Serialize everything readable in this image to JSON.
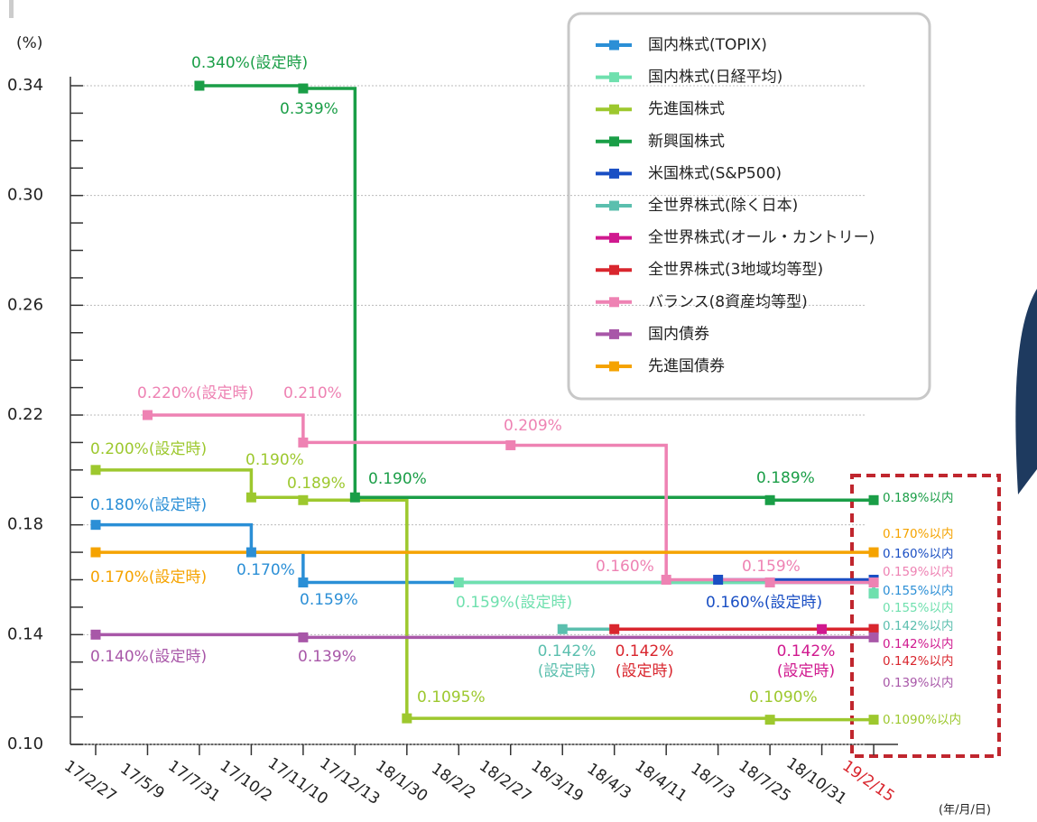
{
  "chart_data": {
    "type": "step",
    "y_unit_label": "(%)",
    "x_unit_label": "(年/月/日)",
    "categories": [
      "17/2/27",
      "17/5/9",
      "17/7/31",
      "17/10/2",
      "17/11/10",
      "17/12/13",
      "18/1/30",
      "18/2/2",
      "18/2/27",
      "18/3/19",
      "18/4/3",
      "18/4/11",
      "18/7/3",
      "18/7/25",
      "18/10/31",
      "19/2/15"
    ],
    "highlight_category_color": "#d9262e",
    "ylim": [
      0.1,
      0.34
    ],
    "yticks": [
      {
        "value": 0.1,
        "label": "0.10"
      },
      0.14,
      0.18,
      0.22,
      0.26,
      {
        "value": 0.3,
        "label": "0.30"
      },
      0.34
    ],
    "yminorticks": [
      0.11,
      0.12,
      0.13,
      0.15,
      0.16,
      0.17,
      0.19,
      0.2,
      0.21,
      0.23,
      0.24,
      0.25,
      0.27,
      0.28,
      0.29,
      0.31,
      0.32,
      0.33
    ],
    "grid": true,
    "series": [
      {
        "name": "国内株式(TOPIX)",
        "color": "#2b8fd6",
        "values": [
          0.18,
          0.18,
          0.18,
          0.17,
          0.159,
          0.159,
          0.159,
          0.159,
          0.159,
          0.159,
          0.159,
          0.159,
          0.159,
          0.159,
          0.159,
          0.155
        ],
        "value_labels": [
          "0.180%(設定時)",
          null,
          null,
          "0.170%",
          "0.159%",
          null,
          null,
          null,
          null,
          null,
          null,
          null,
          null,
          null,
          null,
          "0.155%以内"
        ]
      },
      {
        "name": "国内株式(日経平均)",
        "color": "#6fe0ae",
        "values": [
          null,
          null,
          null,
          null,
          null,
          null,
          null,
          0.159,
          0.159,
          0.159,
          0.159,
          0.159,
          0.159,
          0.159,
          0.159,
          0.155
        ],
        "value_labels": [
          null,
          null,
          null,
          null,
          null,
          null,
          null,
          "0.159%(設定時)",
          null,
          null,
          null,
          null,
          null,
          null,
          null,
          "0.155%以内"
        ]
      },
      {
        "name": "先進国株式",
        "color": "#9dc82e",
        "values": [
          0.2,
          0.2,
          0.2,
          0.19,
          0.189,
          0.189,
          0.1095,
          0.1095,
          0.1095,
          0.1095,
          0.1095,
          0.1095,
          0.1095,
          0.109,
          0.109,
          0.109
        ],
        "value_labels": [
          "0.200%(設定時)",
          null,
          null,
          "0.190%",
          "0.189%",
          null,
          "0.1095%",
          null,
          null,
          null,
          null,
          null,
          null,
          "0.1090%",
          null,
          "0.1090%以内"
        ]
      },
      {
        "name": "新興国株式",
        "color": "#1a9e47",
        "values": [
          null,
          null,
          0.34,
          0.34,
          0.339,
          0.19,
          0.19,
          0.19,
          0.19,
          0.19,
          0.19,
          0.19,
          0.19,
          0.189,
          0.189,
          0.189
        ],
        "value_labels": [
          null,
          null,
          "0.340%(設定時)",
          null,
          "0.339%",
          "0.190%",
          null,
          null,
          null,
          null,
          null,
          null,
          null,
          "0.189%",
          null,
          "0.189%以内"
        ]
      },
      {
        "name": "米国株式(S&P500)",
        "color": "#1a4fc4",
        "values": [
          null,
          null,
          null,
          null,
          null,
          null,
          null,
          null,
          null,
          null,
          null,
          null,
          0.16,
          0.16,
          0.16,
          0.16
        ],
        "value_labels": [
          null,
          null,
          null,
          null,
          null,
          null,
          null,
          null,
          null,
          null,
          null,
          null,
          "0.160%(設定時)",
          null,
          null,
          "0.160%以内"
        ]
      },
      {
        "name": "全世界株式(除く日本)",
        "color": "#5bbfae",
        "values": [
          null,
          null,
          null,
          null,
          null,
          null,
          null,
          null,
          null,
          0.142,
          0.142,
          0.142,
          0.142,
          0.142,
          0.142,
          0.142
        ],
        "value_labels": [
          null,
          null,
          null,
          null,
          null,
          null,
          null,
          null,
          null,
          "0.142%(設定時)",
          null,
          null,
          null,
          null,
          null,
          "0.142%以内"
        ]
      },
      {
        "name": "全世界株式(オール・カントリー)",
        "color": "#d0198f",
        "values": [
          null,
          null,
          null,
          null,
          null,
          null,
          null,
          null,
          null,
          null,
          null,
          null,
          null,
          null,
          0.142,
          0.142
        ],
        "value_labels": [
          null,
          null,
          null,
          null,
          null,
          null,
          null,
          null,
          null,
          null,
          null,
          null,
          null,
          null,
          "0.142%(設定時)",
          "0.142%以内"
        ]
      },
      {
        "name": "全世界株式(3地域均等型)",
        "color": "#d9262e",
        "values": [
          null,
          null,
          null,
          null,
          null,
          null,
          null,
          null,
          null,
          null,
          0.142,
          0.142,
          0.142,
          0.142,
          0.142,
          0.142
        ],
        "value_labels": [
          null,
          null,
          null,
          null,
          null,
          null,
          null,
          null,
          null,
          null,
          "0.142%(設定時)",
          null,
          null,
          null,
          null,
          "0.142%以内"
        ]
      },
      {
        "name": "バランス(8資産均等型)",
        "color": "#ee82b3",
        "values": [
          null,
          0.22,
          0.22,
          0.22,
          0.21,
          0.21,
          0.21,
          0.21,
          0.209,
          0.209,
          0.209,
          0.16,
          0.16,
          0.159,
          0.159,
          0.159
        ],
        "value_labels": [
          null,
          "0.220%(設定時)",
          null,
          null,
          "0.210%",
          null,
          null,
          null,
          "0.209%",
          null,
          null,
          "0.160%",
          null,
          "0.159%",
          null,
          "0.159%以内"
        ]
      },
      {
        "name": "国内債券",
        "color": "#a857a8",
        "values": [
          0.14,
          0.14,
          0.14,
          0.14,
          0.139,
          0.139,
          0.139,
          0.139,
          0.139,
          0.139,
          0.139,
          0.139,
          0.139,
          0.139,
          0.139,
          0.139
        ],
        "value_labels": [
          "0.140%(設定時)",
          null,
          null,
          null,
          "0.139%",
          null,
          null,
          null,
          null,
          null,
          null,
          null,
          null,
          null,
          null,
          "0.139%以内"
        ]
      },
      {
        "name": "先進国債券",
        "color": "#f5a300",
        "values": [
          0.17,
          0.17,
          0.17,
          0.17,
          0.17,
          0.17,
          0.17,
          0.17,
          0.17,
          0.17,
          0.17,
          0.17,
          0.17,
          0.17,
          0.17,
          0.17
        ],
        "value_labels": [
          "0.170%(設定時)",
          null,
          null,
          null,
          null,
          null,
          null,
          null,
          null,
          null,
          null,
          null,
          null,
          null,
          null,
          "0.170%以内"
        ]
      }
    ]
  }
}
